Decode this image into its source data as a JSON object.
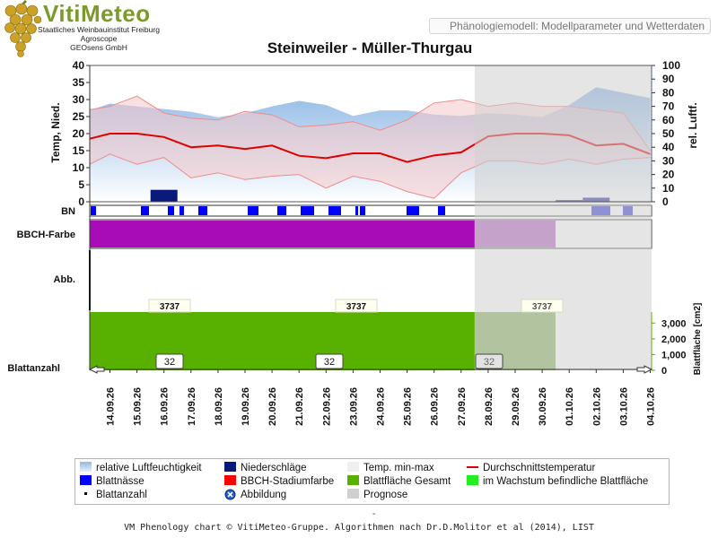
{
  "header": {
    "logo_title": "VitiMeteo",
    "logo_lines": [
      "Staatliches Weinbauinstitut Freiburg",
      "Agroscope",
      "GEOsens GmbH"
    ],
    "tab_label": "Phänologiemodell: Modellparameter und Wetterdaten"
  },
  "footer": {
    "credit": "VM Phenology chart © VitiMeteo-Gruppe. Algorithmen nach Dr.D.Molitor et al (2014), LIST",
    "dash": "-"
  },
  "colors": {
    "humidity": "#8fb8e6",
    "precip": "#0a1a7a",
    "temp_band": "#f6c8c8",
    "avg_temp": "#e00000",
    "leaf_wetness": "#0000ff",
    "bbch": "#a80cb6",
    "leaf_area": "#58b000",
    "forecast": "#cfcfcf"
  },
  "chart_data": {
    "type": "line",
    "title": "Steinweiler - Müller-Thurgau",
    "x_dates": [
      "14.09.26",
      "15.09.26",
      "16.09.26",
      "17.09.26",
      "18.09.26",
      "19.09.26",
      "20.09.26",
      "21.09.26",
      "22.09.26",
      "23.09.26",
      "24.09.26",
      "25.09.26",
      "26.09.26",
      "27.09.26",
      "28.09.26",
      "29.09.26",
      "30.09.26",
      "01.10.26",
      "02.10.26",
      "03.10.26",
      "04.10.26"
    ],
    "forecast_start": "28.09.26",
    "y_left": {
      "label": "Temp, Nied.",
      "ticks": [
        0,
        5,
        10,
        15,
        20,
        25,
        30,
        35,
        40
      ],
      "range": [
        0,
        40
      ]
    },
    "y_right": {
      "label": "rel. Luftf.",
      "ticks": [
        0,
        10,
        20,
        30,
        40,
        50,
        60,
        70,
        80,
        90,
        100
      ],
      "range": [
        0,
        100
      ]
    },
    "series": [
      {
        "name": "relative Luftfeuchtigkeit",
        "axis": "right",
        "x": [
          "13.09.26",
          "14.09.26",
          "15.09.26",
          "16.09.26",
          "17.09.26",
          "18.09.26",
          "19.09.26",
          "20.09.26",
          "21.09.26",
          "22.09.26",
          "23.09.26",
          "24.09.26",
          "25.09.26",
          "26.09.26",
          "27.09.26",
          "28.09.26",
          "29.09.26",
          "30.09.26",
          "01.10.26",
          "02.10.26",
          "03.10.26",
          "04.10.26"
        ],
        "values": [
          67,
          72,
          70,
          68,
          66,
          62,
          65,
          70,
          74,
          71,
          63,
          67,
          67,
          64,
          63,
          65,
          64,
          62,
          71,
          84,
          80,
          76
        ]
      },
      {
        "name": "Temp. min-max",
        "axis": "left",
        "x": [
          "13.09.26",
          "14.09.26",
          "15.09.26",
          "16.09.26",
          "17.09.26",
          "18.09.26",
          "19.09.26",
          "20.09.26",
          "21.09.26",
          "22.09.26",
          "23.09.26",
          "24.09.26",
          "25.09.26",
          "26.09.26",
          "27.09.26",
          "28.09.26",
          "29.09.26",
          "30.09.26",
          "01.10.26",
          "02.10.26",
          "03.10.26",
          "04.10.26"
        ],
        "min": [
          11,
          14,
          11,
          13,
          7,
          8.5,
          6.5,
          7.5,
          8,
          4,
          7.5,
          6,
          3,
          1,
          8.5,
          12,
          12,
          11,
          12.5,
          11,
          12.5,
          13
        ],
        "max": [
          27,
          28,
          31,
          26,
          24.5,
          24,
          26.5,
          25.5,
          22,
          22.5,
          23.5,
          21,
          24,
          29,
          30,
          28,
          29,
          28,
          28,
          27,
          26,
          15
        ]
      },
      {
        "name": "Durchschnittstemperatur",
        "axis": "left",
        "x": [
          "13.09.26",
          "14.09.26",
          "15.09.26",
          "16.09.26",
          "17.09.26",
          "18.09.26",
          "19.09.26",
          "20.09.26",
          "21.09.26",
          "22.09.26",
          "23.09.26",
          "24.09.26",
          "25.09.26",
          "26.09.26",
          "27.09.26",
          "28.09.26",
          "29.09.26",
          "30.09.26",
          "01.10.26",
          "02.10.26",
          "03.10.26",
          "04.10.26"
        ],
        "values": [
          18.5,
          20,
          20,
          19,
          16,
          16.5,
          15.5,
          16.5,
          13.5,
          12.8,
          14.2,
          14.2,
          11.7,
          13.6,
          14.5,
          19.2,
          20,
          20,
          19.5,
          16.5,
          17,
          14
        ]
      },
      {
        "name": "Niederschläge",
        "axis": "left",
        "x": [
          "16.09.26",
          "02.10.26",
          "01.10.26"
        ],
        "values": [
          3.5,
          1.2,
          0.5
        ]
      }
    ],
    "leaf_wetness_row": {
      "label": "BN"
    },
    "bbch_row": {
      "label": "BBCH-Farbe"
    },
    "abb_row": {
      "label": "Abb."
    },
    "leaf_area": {
      "label": "Blattfläche [cm2]",
      "ticks": [
        "0",
        "1,000",
        "2,000",
        "3,000"
      ],
      "range": [
        0,
        3700
      ],
      "value_labels": [
        "3737",
        "3737",
        "3737"
      ]
    },
    "leaf_count": {
      "label": "Blattanzahl",
      "value_labels": [
        "32",
        "32",
        "32"
      ]
    },
    "legend": {
      "labels": [
        "relative Luftfeuchtigkeit",
        "Niederschläge",
        "Temp. min-max",
        "Durchschnittstemperatur",
        "Blattnässe",
        "BBCH-Stadiumfarbe",
        "Blattfläche Gesamt",
        "im Wachstum befindliche Blattfläche",
        "Blattanzahl",
        "Abbildung",
        "Prognose"
      ]
    }
  }
}
